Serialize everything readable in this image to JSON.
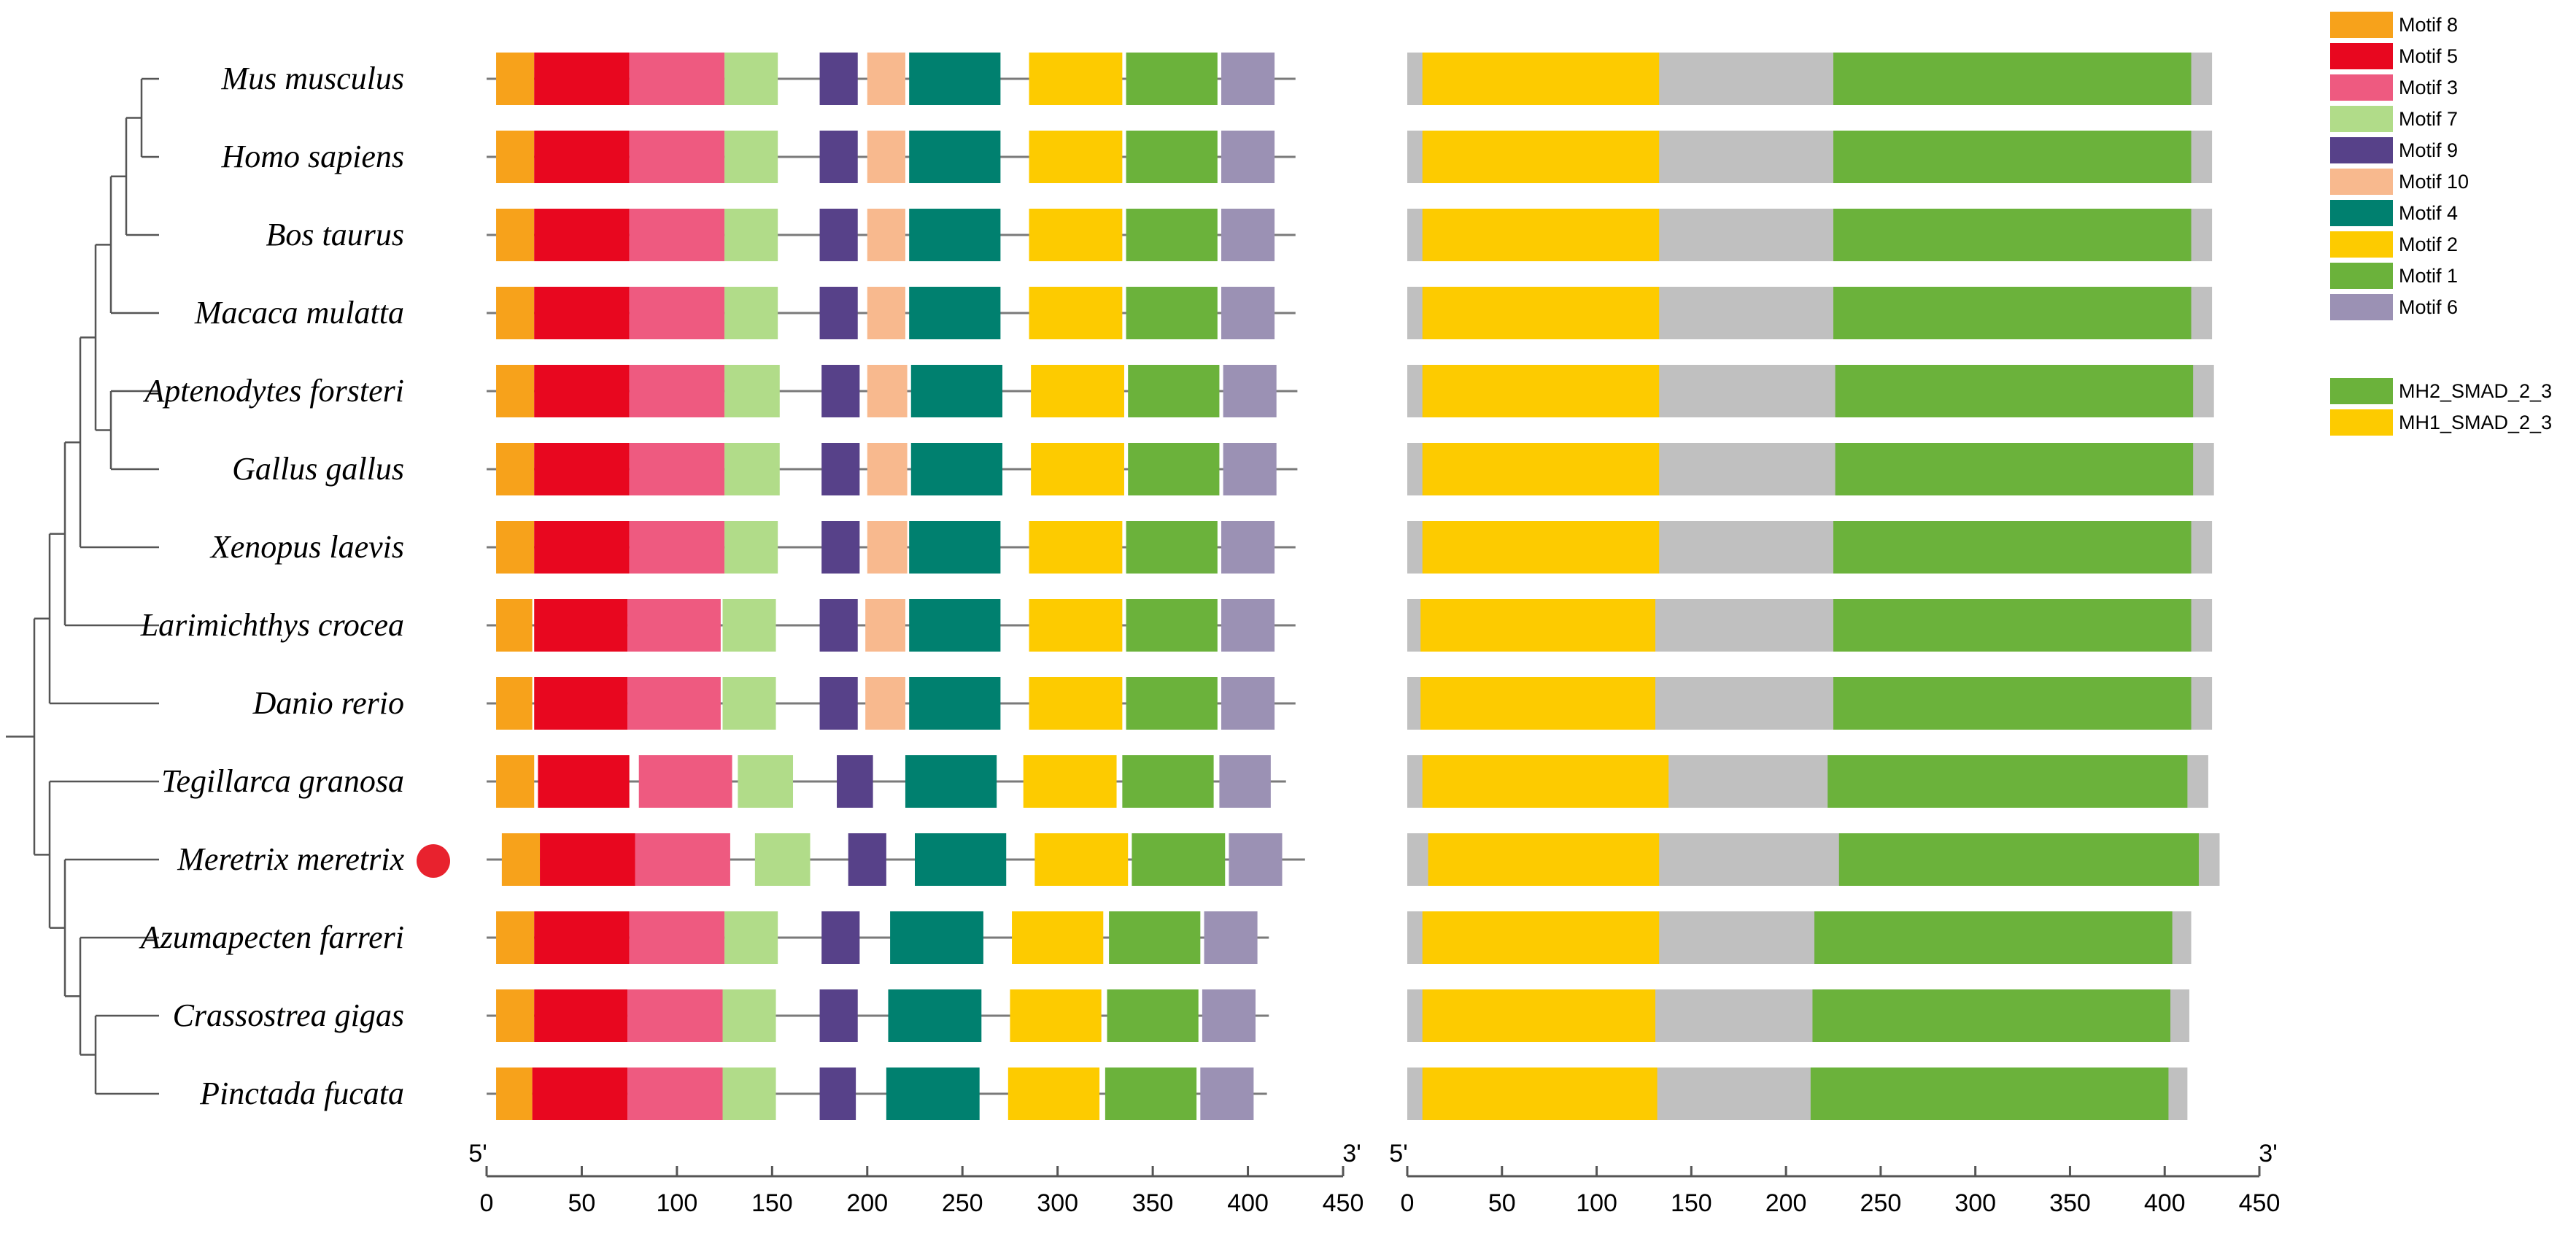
{
  "species": [
    {
      "name": "Mus musculus",
      "highlight": false
    },
    {
      "name": "Homo sapiens",
      "highlight": false
    },
    {
      "name": "Bos taurus",
      "highlight": false
    },
    {
      "name": "Macaca mulatta",
      "highlight": false
    },
    {
      "name": "Aptenodytes forsteri",
      "highlight": false
    },
    {
      "name": "Gallus gallus",
      "highlight": false
    },
    {
      "name": "Xenopus laevis",
      "highlight": false
    },
    {
      "name": "Larimichthys crocea",
      "highlight": false
    },
    {
      "name": "Danio rerio",
      "highlight": false
    },
    {
      "name": "Tegillarca granosa",
      "highlight": false
    },
    {
      "name": "Meretrix meretrix",
      "highlight": true
    },
    {
      "name": "Azumapecten farreri",
      "highlight": false
    },
    {
      "name": "Crassostrea gigas",
      "highlight": false
    },
    {
      "name": "Pinctada fucata",
      "highlight": false
    }
  ],
  "highlight_color": "#e8222e",
  "motif_legend": [
    {
      "id": "m8",
      "label": "Motif 8",
      "color": "#f7a21b"
    },
    {
      "id": "m5",
      "label": "Motif 5",
      "color": "#e8071f"
    },
    {
      "id": "m3",
      "label": "Motif 3",
      "color": "#ee5a80"
    },
    {
      "id": "m7",
      "label": "Motif 7",
      "color": "#b1dc89"
    },
    {
      "id": "m9",
      "label": "Motif 9",
      "color": "#574189"
    },
    {
      "id": "m10",
      "label": "Motif 10",
      "color": "#f8b98e"
    },
    {
      "id": "m4",
      "label": "Motif 4",
      "color": "#00806f"
    },
    {
      "id": "m2",
      "label": "Motif 2",
      "color": "#fdcb00"
    },
    {
      "id": "m1",
      "label": "Motif 1",
      "color": "#6bb23b"
    },
    {
      "id": "m6",
      "label": "Motif 6",
      "color": "#9b91b4"
    }
  ],
  "domain_legend": [
    {
      "id": "mh2",
      "label": "MH2_SMAD_2_3",
      "color": "#6bb23b"
    },
    {
      "id": "mh1",
      "label": "MH1_SMAD_2_3",
      "color": "#fdcb00"
    }
  ],
  "backbone_color": "#c0c0c0",
  "motif_rows": [
    {
      "length": 425,
      "motifs": [
        [
          "m8",
          5,
          25
        ],
        [
          "m5",
          25,
          75
        ],
        [
          "m3",
          75,
          125
        ],
        [
          "m7",
          125,
          153
        ],
        [
          "m9",
          175,
          195
        ],
        [
          "m10",
          200,
          220
        ],
        [
          "m4",
          222,
          270
        ],
        [
          "m2",
          285,
          334
        ],
        [
          "m1",
          336,
          384
        ],
        [
          "m6",
          386,
          414
        ]
      ]
    },
    {
      "length": 425,
      "motifs": [
        [
          "m8",
          5,
          25
        ],
        [
          "m5",
          25,
          75
        ],
        [
          "m3",
          75,
          125
        ],
        [
          "m7",
          125,
          153
        ],
        [
          "m9",
          175,
          195
        ],
        [
          "m10",
          200,
          220
        ],
        [
          "m4",
          222,
          270
        ],
        [
          "m2",
          285,
          334
        ],
        [
          "m1",
          336,
          384
        ],
        [
          "m6",
          386,
          414
        ]
      ]
    },
    {
      "length": 425,
      "motifs": [
        [
          "m8",
          5,
          25
        ],
        [
          "m5",
          25,
          75
        ],
        [
          "m3",
          75,
          125
        ],
        [
          "m7",
          125,
          153
        ],
        [
          "m9",
          175,
          195
        ],
        [
          "m10",
          200,
          220
        ],
        [
          "m4",
          222,
          270
        ],
        [
          "m2",
          285,
          334
        ],
        [
          "m1",
          336,
          384
        ],
        [
          "m6",
          386,
          414
        ]
      ]
    },
    {
      "length": 425,
      "motifs": [
        [
          "m8",
          5,
          25
        ],
        [
          "m5",
          25,
          75
        ],
        [
          "m3",
          75,
          125
        ],
        [
          "m7",
          125,
          153
        ],
        [
          "m9",
          175,
          195
        ],
        [
          "m10",
          200,
          220
        ],
        [
          "m4",
          222,
          270
        ],
        [
          "m2",
          285,
          334
        ],
        [
          "m1",
          336,
          384
        ],
        [
          "m6",
          386,
          414
        ]
      ]
    },
    {
      "length": 426,
      "motifs": [
        [
          "m8",
          5,
          25
        ],
        [
          "m5",
          25,
          75
        ],
        [
          "m3",
          75,
          125
        ],
        [
          "m7",
          125,
          154
        ],
        [
          "m9",
          176,
          196
        ],
        [
          "m10",
          200,
          221
        ],
        [
          "m4",
          223,
          271
        ],
        [
          "m2",
          286,
          335
        ],
        [
          "m1",
          337,
          385
        ],
        [
          "m6",
          387,
          415
        ]
      ]
    },
    {
      "length": 426,
      "motifs": [
        [
          "m8",
          5,
          25
        ],
        [
          "m5",
          25,
          75
        ],
        [
          "m3",
          75,
          125
        ],
        [
          "m7",
          125,
          154
        ],
        [
          "m9",
          176,
          196
        ],
        [
          "m10",
          200,
          221
        ],
        [
          "m4",
          223,
          271
        ],
        [
          "m2",
          286,
          335
        ],
        [
          "m1",
          337,
          385
        ],
        [
          "m6",
          387,
          415
        ]
      ]
    },
    {
      "length": 425,
      "motifs": [
        [
          "m8",
          5,
          25
        ],
        [
          "m5",
          25,
          75
        ],
        [
          "m3",
          75,
          125
        ],
        [
          "m7",
          125,
          153
        ],
        [
          "m9",
          176,
          196
        ],
        [
          "m10",
          200,
          221
        ],
        [
          "m4",
          222,
          270
        ],
        [
          "m2",
          285,
          334
        ],
        [
          "m1",
          336,
          384
        ],
        [
          "m6",
          386,
          414
        ]
      ]
    },
    {
      "length": 425,
      "motifs": [
        [
          "m8",
          5,
          24
        ],
        [
          "m5",
          25,
          74
        ],
        [
          "m3",
          74,
          123
        ],
        [
          "m7",
          124,
          152
        ],
        [
          "m9",
          175,
          195
        ],
        [
          "m10",
          199,
          220
        ],
        [
          "m4",
          222,
          270
        ],
        [
          "m2",
          285,
          334
        ],
        [
          "m1",
          336,
          384
        ],
        [
          "m6",
          386,
          414
        ]
      ]
    },
    {
      "length": 425,
      "motifs": [
        [
          "m8",
          5,
          24
        ],
        [
          "m5",
          25,
          74
        ],
        [
          "m3",
          74,
          123
        ],
        [
          "m7",
          124,
          152
        ],
        [
          "m9",
          175,
          195
        ],
        [
          "m10",
          199,
          220
        ],
        [
          "m4",
          222,
          270
        ],
        [
          "m2",
          285,
          334
        ],
        [
          "m1",
          336,
          384
        ],
        [
          "m6",
          386,
          414
        ]
      ]
    },
    {
      "length": 420,
      "motifs": [
        [
          "m8",
          5,
          25
        ],
        [
          "m5",
          27,
          75
        ],
        [
          "m3",
          80,
          129
        ],
        [
          "m7",
          132,
          161
        ],
        [
          "m9",
          184,
          203
        ],
        [
          "m4",
          220,
          268
        ],
        [
          "m2",
          282,
          331
        ],
        [
          "m1",
          334,
          382
        ],
        [
          "m6",
          385,
          412
        ]
      ]
    },
    {
      "length": 430,
      "motifs": [
        [
          "m8",
          8,
          28
        ],
        [
          "m5",
          28,
          78
        ],
        [
          "m3",
          78,
          128
        ],
        [
          "m7",
          141,
          170
        ],
        [
          "m9",
          190,
          210
        ],
        [
          "m4",
          225,
          273
        ],
        [
          "m2",
          288,
          337
        ],
        [
          "m1",
          339,
          388
        ],
        [
          "m6",
          390,
          418
        ]
      ]
    },
    {
      "length": 411,
      "motifs": [
        [
          "m8",
          5,
          25
        ],
        [
          "m5",
          25,
          75
        ],
        [
          "m3",
          75,
          125
        ],
        [
          "m7",
          125,
          153
        ],
        [
          "m9",
          176,
          196
        ],
        [
          "m4",
          212,
          261
        ],
        [
          "m2",
          276,
          324
        ],
        [
          "m1",
          327,
          375
        ],
        [
          "m6",
          377,
          405
        ]
      ]
    },
    {
      "length": 411,
      "motifs": [
        [
          "m8",
          5,
          25
        ],
        [
          "m5",
          25,
          74
        ],
        [
          "m3",
          74,
          124
        ],
        [
          "m7",
          124,
          152
        ],
        [
          "m9",
          175,
          195
        ],
        [
          "m4",
          211,
          260
        ],
        [
          "m2",
          275,
          323
        ],
        [
          "m1",
          326,
          374
        ],
        [
          "m6",
          376,
          404
        ]
      ]
    },
    {
      "length": 410,
      "motifs": [
        [
          "m8",
          5,
          24
        ],
        [
          "m5",
          24,
          74
        ],
        [
          "m3",
          74,
          124
        ],
        [
          "m7",
          124,
          152
        ],
        [
          "m9",
          175,
          194
        ],
        [
          "m4",
          210,
          259
        ],
        [
          "m2",
          274,
          322
        ],
        [
          "m1",
          325,
          373
        ],
        [
          "m6",
          375,
          403
        ]
      ]
    }
  ],
  "domain_rows": [
    {
      "length": 425,
      "domains": [
        [
          "mh1",
          8,
          133
        ],
        [
          "mh2",
          225,
          414
        ]
      ]
    },
    {
      "length": 425,
      "domains": [
        [
          "mh1",
          8,
          133
        ],
        [
          "mh2",
          225,
          414
        ]
      ]
    },
    {
      "length": 425,
      "domains": [
        [
          "mh1",
          8,
          133
        ],
        [
          "mh2",
          225,
          414
        ]
      ]
    },
    {
      "length": 425,
      "domains": [
        [
          "mh1",
          8,
          133
        ],
        [
          "mh2",
          225,
          414
        ]
      ]
    },
    {
      "length": 426,
      "domains": [
        [
          "mh1",
          8,
          133
        ],
        [
          "mh2",
          226,
          415
        ]
      ]
    },
    {
      "length": 426,
      "domains": [
        [
          "mh1",
          8,
          133
        ],
        [
          "mh2",
          226,
          415
        ]
      ]
    },
    {
      "length": 425,
      "domains": [
        [
          "mh1",
          8,
          133
        ],
        [
          "mh2",
          225,
          414
        ]
      ]
    },
    {
      "length": 425,
      "domains": [
        [
          "mh1",
          7,
          131
        ],
        [
          "mh2",
          225,
          414
        ]
      ]
    },
    {
      "length": 425,
      "domains": [
        [
          "mh1",
          7,
          131
        ],
        [
          "mh2",
          225,
          414
        ]
      ]
    },
    {
      "length": 423,
      "domains": [
        [
          "mh1",
          8,
          138
        ],
        [
          "mh2",
          222,
          412
        ]
      ]
    },
    {
      "length": 429,
      "domains": [
        [
          "mh1",
          11,
          133
        ],
        [
          "mh2",
          228,
          418
        ]
      ]
    },
    {
      "length": 414,
      "domains": [
        [
          "mh1",
          8,
          133
        ],
        [
          "mh2",
          215,
          404
        ]
      ]
    },
    {
      "length": 413,
      "domains": [
        [
          "mh1",
          8,
          131
        ],
        [
          "mh2",
          214,
          403
        ]
      ]
    },
    {
      "length": 412,
      "domains": [
        [
          "mh1",
          8,
          132
        ],
        [
          "mh2",
          213,
          402
        ]
      ]
    }
  ],
  "axes": {
    "motif": {
      "range": [
        0,
        450
      ],
      "ticks": [
        0,
        50,
        100,
        150,
        200,
        250,
        300,
        350,
        400,
        450
      ],
      "start_label": "5'",
      "end_label": "3'"
    },
    "domain": {
      "range": [
        0,
        450
      ],
      "ticks": [
        0,
        50,
        100,
        150,
        200,
        250,
        300,
        350,
        400,
        450
      ],
      "start_label": "5'",
      "end_label": "3'"
    }
  },
  "tree_topology": [
    [
      [
        [
          [
            [
              [
                [
                  [
                    0,
                    1
                  ],
                  2
                ],
                3
              ],
              [
                4,
                5
              ]
            ],
            6
          ],
          7
        ],
        8
      ],
      [
        9,
        [
          10,
          [
            11,
            [
              12,
              13
            ]
          ]
        ]
      ]
    ]
  ]
}
